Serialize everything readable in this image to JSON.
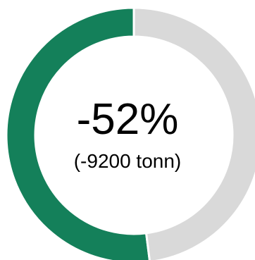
{
  "chart_data": {
    "type": "pie",
    "variant": "donut",
    "slices": [
      {
        "value": 52,
        "color": "#14805a"
      },
      {
        "value": 48,
        "color": "#d9d9d9"
      }
    ],
    "center_text": "-52%",
    "center_subtext": "(-9200 tonn)"
  }
}
